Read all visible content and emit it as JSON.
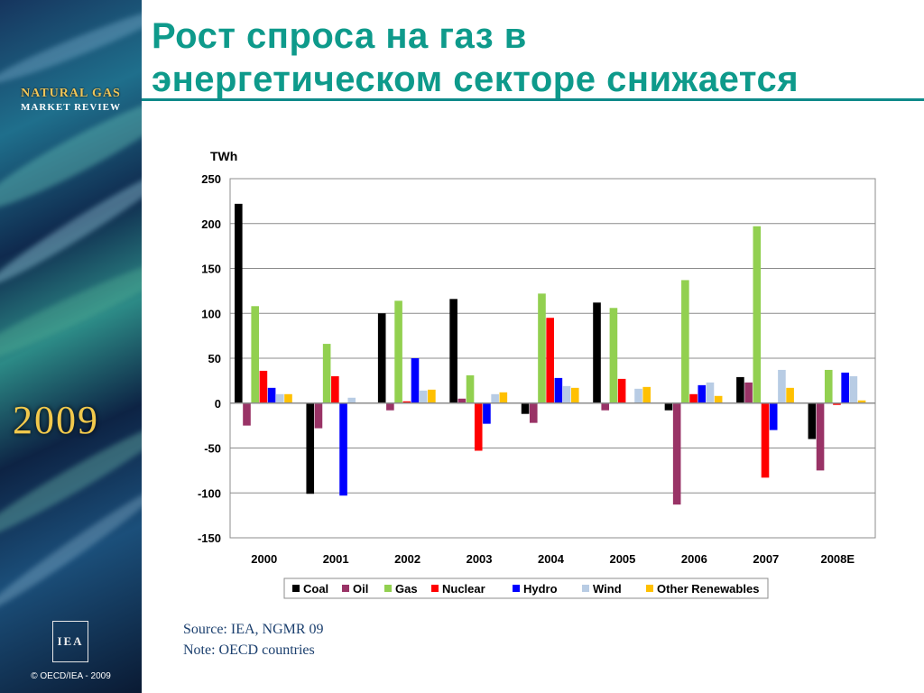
{
  "title": {
    "line1": "Рост спроса на газ в",
    "line2": "энергетическом секторе снижается"
  },
  "sidebar": {
    "brand_line1": "NATURAL GAS",
    "brand_line2": "MARKET REVIEW",
    "year": "2009",
    "logo": "IEA",
    "copyright": "© OECD/IEA - 2009"
  },
  "chart_data": {
    "type": "bar",
    "ylabel": "TWh",
    "ylim": [
      -150,
      250
    ],
    "yticks": [
      250,
      200,
      150,
      100,
      50,
      0,
      -50,
      -100,
      -150
    ],
    "grid": true,
    "legend_position": "bottom",
    "categories": [
      "2000",
      "2001",
      "2002",
      "2003",
      "2004",
      "2005",
      "2006",
      "2007",
      "2008E"
    ],
    "series": [
      {
        "name": "Coal",
        "color": "#000000",
        "values": [
          222,
          -101,
          100,
          116,
          -12,
          112,
          -8,
          29,
          -40
        ]
      },
      {
        "name": "Oil",
        "color": "#993366",
        "values": [
          -25,
          -28,
          -8,
          5,
          -22,
          -8,
          -113,
          23,
          -75
        ]
      },
      {
        "name": "Gas",
        "color": "#92d050",
        "values": [
          108,
          66,
          114,
          31,
          122,
          106,
          137,
          197,
          37
        ]
      },
      {
        "name": "Nuclear",
        "color": "#ff0000",
        "values": [
          36,
          30,
          2,
          -53,
          95,
          27,
          10,
          -83,
          -2
        ]
      },
      {
        "name": "Hydro",
        "color": "#0000ff",
        "values": [
          17,
          -103,
          50,
          -23,
          28,
          0,
          20,
          -30,
          34
        ]
      },
      {
        "name": "Wind",
        "color": "#b8cce4",
        "values": [
          10,
          6,
          14,
          10,
          19,
          16,
          23,
          37,
          30
        ]
      },
      {
        "name": "Other Renewables",
        "color": "#ffc000",
        "values": [
          10,
          0,
          15,
          12,
          17,
          18,
          8,
          17,
          3
        ]
      }
    ]
  },
  "notes": {
    "source": "Source: IEA, NGMR 09",
    "note": "Note: OECD countries"
  }
}
